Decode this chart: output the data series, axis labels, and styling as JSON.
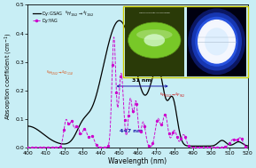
{
  "background_color": "#c8eef5",
  "plot_bg": "#c8eef5",
  "xlim": [
    400,
    520
  ],
  "ylim": [
    0.0,
    0.5
  ],
  "xlabel": "Wavelength (nm)",
  "ylabel": "Absorption coefficient (cm$^{-1}$)",
  "legend_gsag": "Dy:GSAG",
  "legend_yag": "Dy:YAG",
  "gsag_color": "#000000",
  "yag_color": "#cc00cc",
  "arrow_color": "#1a1aaa",
  "annotation_color_red": "#cc2200",
  "inset_border": "#cccc00",
  "xticks": [
    400,
    410,
    420,
    430,
    440,
    450,
    460,
    470,
    480,
    490,
    500,
    510,
    520
  ],
  "yticks": [
    0.0,
    0.1,
    0.2,
    0.3,
    0.4,
    0.5
  ]
}
